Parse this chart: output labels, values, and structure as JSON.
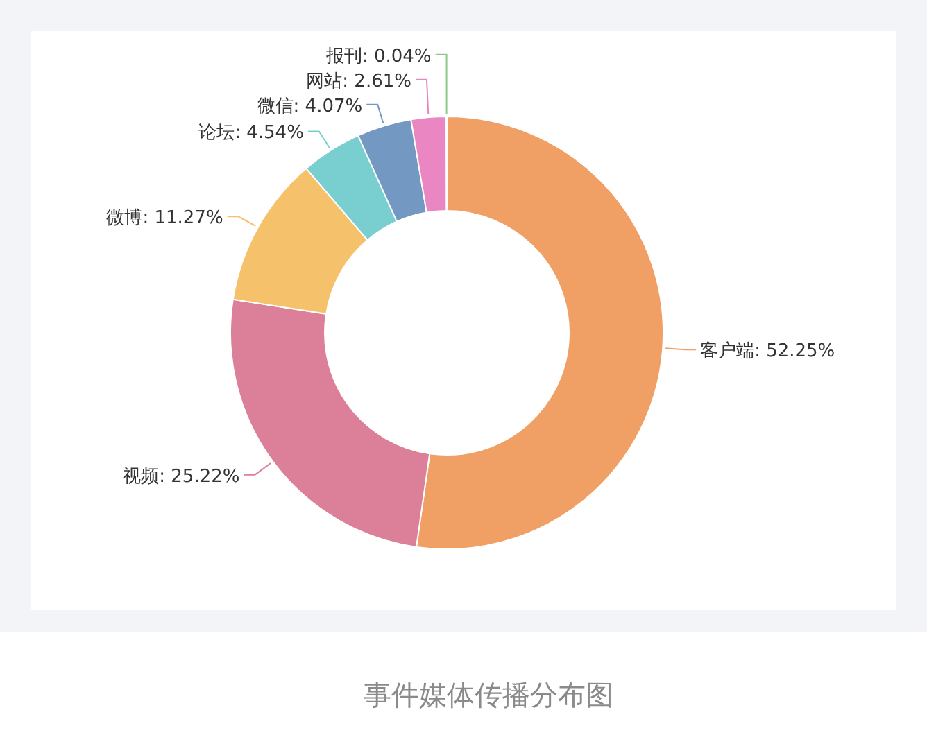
{
  "chart_data": {
    "type": "donut",
    "annotations": [
      "事件媒体传播分布图"
    ],
    "categories": [
      "客户端",
      "视频",
      "微博",
      "论坛",
      "微信",
      "网站",
      "报刊"
    ],
    "values": [
      52.25,
      25.22,
      11.27,
      4.54,
      4.07,
      2.61,
      0.04
    ],
    "colors": [
      "#f0a065",
      "#dc7f98",
      "#f5c16b",
      "#79cfd0",
      "#7399c2",
      "#ea87c3",
      "#8cc98a"
    ],
    "value_labels": [
      ": 52.25%",
      ": 25.22%",
      ": 11.27%",
      ": 4.54%",
      ": 4.07%",
      ": 2.61%",
      ": 0.04%"
    ]
  }
}
